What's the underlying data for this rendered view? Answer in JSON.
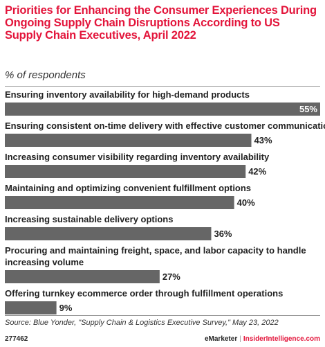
{
  "header": {
    "title": "Priorities for Enhancing the Consumer Experiences During Ongoing Supply Chain Disruptions According to US Supply Chain Executives, April 2022",
    "subtitle": "% of respondents"
  },
  "chart_data": {
    "type": "bar",
    "orientation": "horizontal",
    "categories": [
      "Ensuring inventory availability for high-demand products",
      "Ensuring consistent on-time delivery with effective customer communication",
      "Increasing consumer visibility regarding inventory availability",
      "Maintaining and optimizing convenient fulfillment options",
      "Increasing sustainable delivery options",
      "Procuring and maintaining freight, space, and labor capacity to handle increasing volume",
      "Offering turnkey ecommerce order through fulfillment operations"
    ],
    "category_lines": [
      [
        "Ensuring inventory availability for high-demand products"
      ],
      [
        "Ensuring consistent on-time delivery with effective customer communication"
      ],
      [
        "Increasing consumer visibility regarding inventory availability"
      ],
      [
        "Maintaining and optimizing convenient fulfillment options"
      ],
      [
        "Increasing sustainable delivery options"
      ],
      [
        "Procuring and maintaining freight, space, and labor capacity to handle",
        "increasing volume"
      ],
      [
        "Offering turnkey ecommerce order through fulfillment operations"
      ]
    ],
    "values": [
      55,
      43,
      42,
      40,
      36,
      27,
      9
    ],
    "value_labels": [
      "55%",
      "43%",
      "42%",
      "40%",
      "36%",
      "27%",
      "9%"
    ],
    "xlim": [
      0,
      55
    ],
    "bar_color": "#666666",
    "grid": false
  },
  "footer": {
    "source": "Source: Blue Yonder, \"Supply Chain & Logistics Executive Survey,\" May 23, 2022",
    "chart_id": "277462",
    "brand_emarketer": "eMarketer",
    "brand_separator": "|",
    "brand_insider": "InsiderIntelligence.com"
  }
}
